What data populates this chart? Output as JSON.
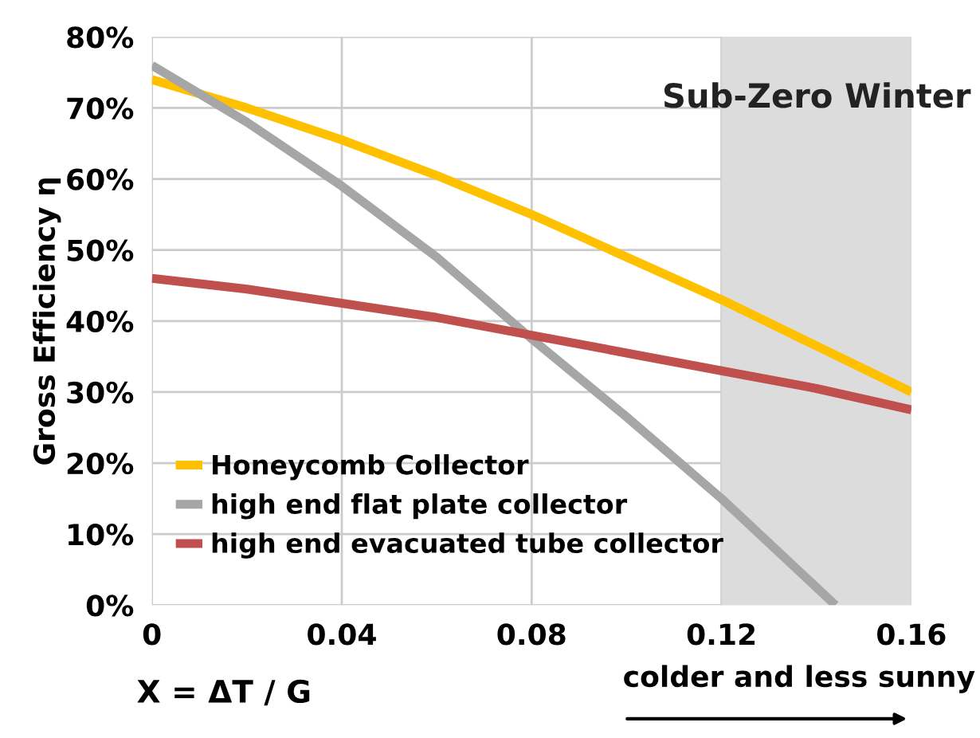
{
  "chart_data": {
    "type": "line",
    "xlabel": "X = ΔT / G",
    "ylabel": "Gross Efficiency η",
    "xlim": [
      0,
      0.16
    ],
    "xticks": [
      0,
      0.04,
      0.08,
      0.12,
      0.16
    ],
    "ylim": [
      0,
      80
    ],
    "yticks": [
      {
        "value": 0,
        "label": "0%"
      },
      {
        "value": 10,
        "label": "10%"
      },
      {
        "value": 20,
        "label": "20%"
      },
      {
        "value": 30,
        "label": "30%"
      },
      {
        "value": 40,
        "label": "40%"
      },
      {
        "value": 50,
        "label": "50%"
      },
      {
        "value": 60,
        "label": "60%"
      },
      {
        "value": 70,
        "label": "70%"
      },
      {
        "value": 80,
        "label": "80%"
      }
    ],
    "grid": true,
    "legend": "bottom left",
    "marker": "none",
    "line_style": "solid",
    "series": [
      {
        "name": "Honeycomb Collector",
        "color": "#ffc000",
        "x": [
          0,
          0.02,
          0.04,
          0.06,
          0.08,
          0.1,
          0.12,
          0.14,
          0.16
        ],
        "values": [
          74,
          70,
          65.5,
          60.5,
          55,
          49,
          43,
          36.5,
          30
        ]
      },
      {
        "name": "high end flat plate collector",
        "color": "#a6a6a6",
        "x": [
          0,
          0.02,
          0.04,
          0.06,
          0.08,
          0.1,
          0.12,
          0.144
        ],
        "values": [
          76,
          68,
          59,
          49,
          37.5,
          26.5,
          15,
          0
        ]
      },
      {
        "name": "high end evacuated tube collector",
        "color": "#c0504d",
        "x": [
          0,
          0.02,
          0.04,
          0.06,
          0.08,
          0.1,
          0.12,
          0.14,
          0.16
        ],
        "values": [
          46,
          44.5,
          42.5,
          40.5,
          38,
          35.5,
          33,
          30.5,
          27.5
        ]
      }
    ],
    "bands": [
      {
        "axis": "x",
        "from": 0.12,
        "to": 0.16,
        "label": "Sub-Zero Winter",
        "color": "#dcdcdc"
      }
    ],
    "annotations": [
      "colder and less sunny"
    ]
  }
}
